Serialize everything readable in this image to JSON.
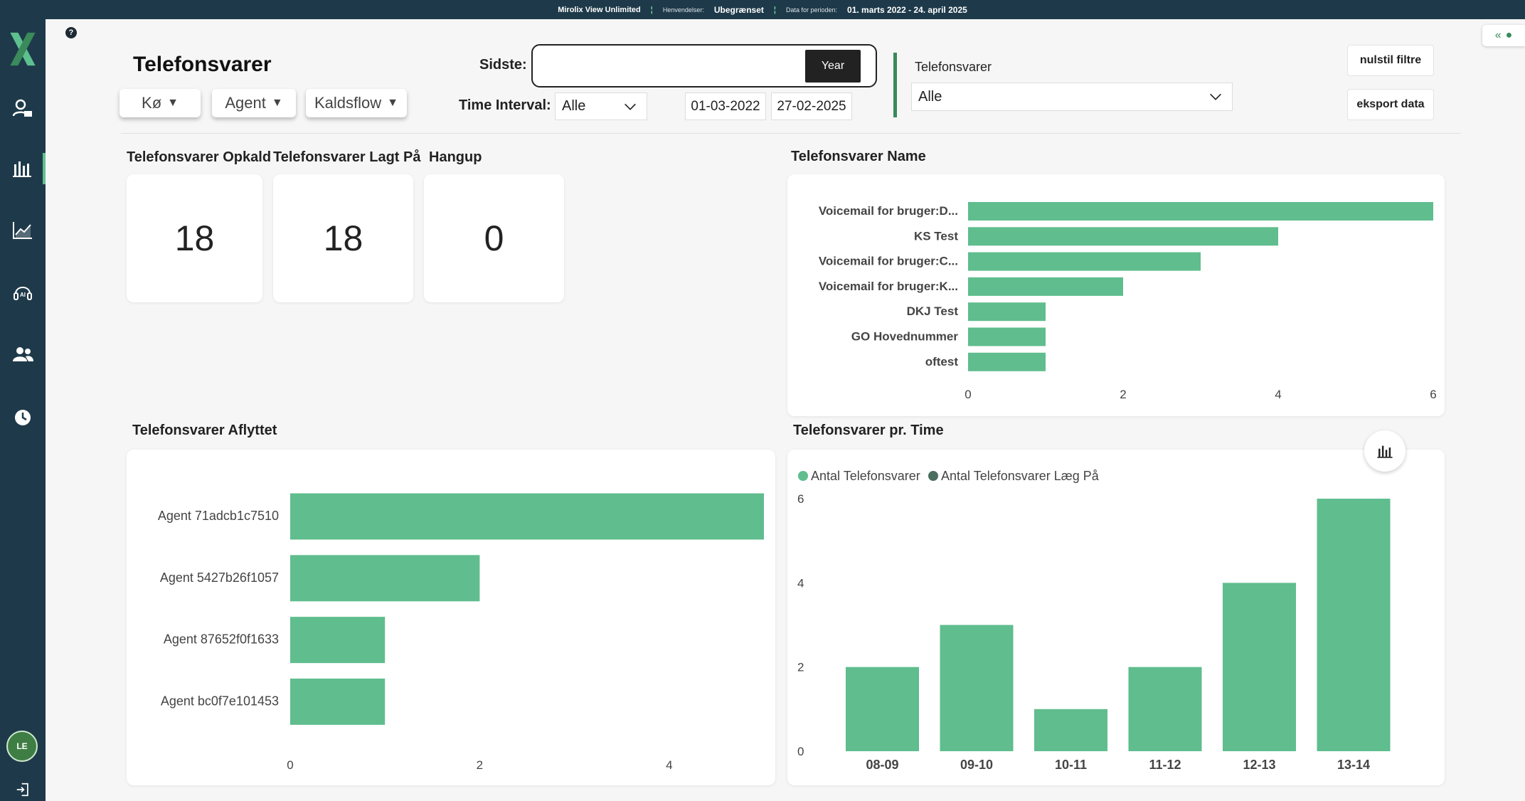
{
  "topbar": {
    "brand": "Mirolix View Unlimited",
    "henvendelser_label": "Henvendelser:",
    "henvendelser_value": "Ubegrænset",
    "periode_label": "Data for perioden:",
    "periode_value": "01. marts 2022 - 24. april 2025"
  },
  "sidebar": {
    "items": [
      {
        "icon": "agent-icon"
      },
      {
        "icon": "bar-chart-icon",
        "active": true
      },
      {
        "icon": "trend-chart-icon"
      },
      {
        "icon": "ai-headset-icon"
      },
      {
        "icon": "users-icon"
      },
      {
        "icon": "clock-icon"
      }
    ],
    "avatar": "LE",
    "logout_icon": "logout-icon"
  },
  "header": {
    "help": "?",
    "title": "Telefonsvarer",
    "filters": [
      {
        "label": "Kø",
        "arrow": "▼"
      },
      {
        "label": "Agent",
        "arrow": "▼"
      },
      {
        "label": "Kaldsflow",
        "arrow": "▼"
      }
    ],
    "sidste_label": "Sidste:",
    "sidste_value": "",
    "year_button": "Year",
    "time_interval_label": "Time Interval:",
    "time_interval_value": "Alle",
    "date_from": "01-03-2022",
    "date_to": "27-02-2025",
    "telefonsvarer_label": "Telefonsvarer",
    "telefonsvarer_value": "Alle",
    "reset_button": "nulstil filtre",
    "export_button": "eksport data"
  },
  "kpis": [
    {
      "title": "Telefonsvarer Opkald",
      "value": "18"
    },
    {
      "title": "Telefonsvarer Lagt På",
      "value": "18"
    },
    {
      "title": "Hangup",
      "value": "0"
    }
  ],
  "colors": {
    "bar": "#5fbd8e",
    "bar_dark": "#4a6e60",
    "sidebar": "#1e3a4a",
    "accent": "#3a8a5c"
  },
  "chart_data": [
    {
      "id": "name",
      "type": "bar",
      "orientation": "horizontal",
      "title": "Telefonsvarer Name",
      "categories": [
        "Voicemail for bruger:D...",
        "KS Test",
        "Voicemail for bruger:C...",
        "Voicemail for bruger:K...",
        "DKJ Test",
        "GO Hovednummer",
        "oftest"
      ],
      "values": [
        6,
        4,
        3,
        2,
        1,
        1,
        1
      ],
      "xlim": [
        0,
        6
      ],
      "xticks": [
        "0",
        "2",
        "4",
        "6"
      ]
    },
    {
      "id": "aflyttet",
      "type": "bar",
      "orientation": "horizontal",
      "title": "Telefonsvarer Aflyttet",
      "categories": [
        "Agent 71adcb1c7510",
        "Agent 5427b26f1057",
        "Agent 87652f0f1633",
        "Agent bc0f7e101453"
      ],
      "values": [
        5,
        2,
        1,
        1
      ],
      "xlim": [
        0,
        5
      ],
      "xticks": [
        "0",
        "2",
        "4"
      ]
    },
    {
      "id": "pr_time",
      "type": "bar",
      "orientation": "vertical",
      "title": "Telefonsvarer pr. Time",
      "categories": [
        "08-09",
        "09-10",
        "10-11",
        "11-12",
        "12-13",
        "13-14"
      ],
      "series": [
        {
          "name": "Antal Telefonsvarer",
          "values": [
            2,
            3,
            1,
            2,
            4,
            6
          ]
        },
        {
          "name": "Antal Telefonsvarer Læg På",
          "values": [
            0,
            0,
            0,
            0,
            0,
            0
          ]
        }
      ],
      "ylim": [
        0,
        6
      ],
      "yticks": [
        "0",
        "2",
        "4",
        "6"
      ],
      "legend": "top-left"
    }
  ]
}
